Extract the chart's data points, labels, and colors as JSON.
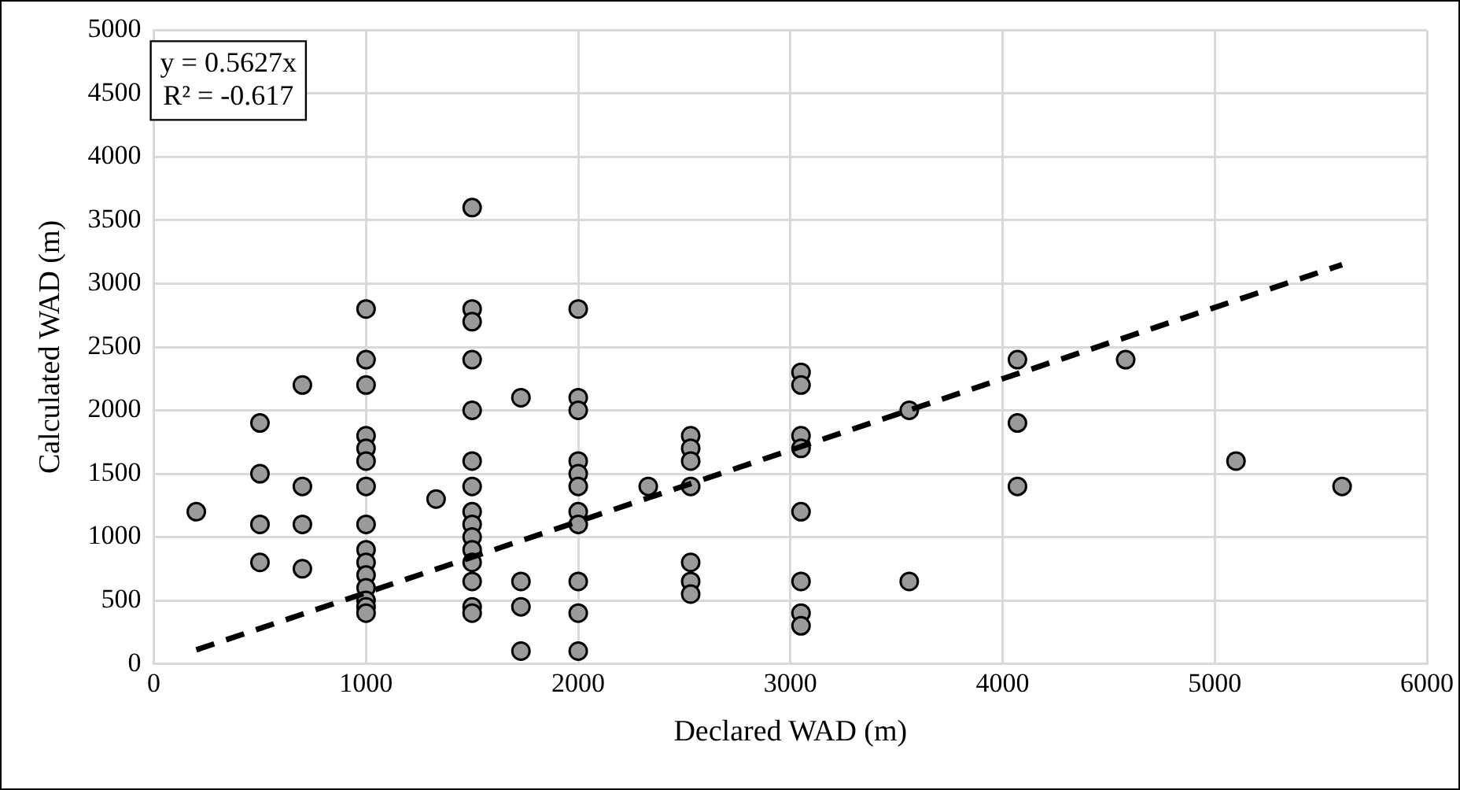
{
  "chart_data": {
    "type": "scatter",
    "xlabel": "Declared WAD (m)",
    "ylabel": "Calculated WAD (m)",
    "annotations": [
      "y = 0.5627x",
      "R² = -0.617"
    ],
    "xlim": [
      0,
      6000
    ],
    "xticks": [
      0,
      1000,
      2000,
      3000,
      4000,
      5000,
      6000
    ],
    "ylim": [
      0,
      5000
    ],
    "yticks": [
      0,
      500,
      1000,
      1500,
      2000,
      2500,
      3000,
      3500,
      4000,
      4500,
      5000
    ],
    "grid": true,
    "marker": "circle",
    "series": [
      {
        "type": "scatter",
        "color": "#9a9a9a",
        "x": [
          200,
          500,
          500,
          500,
          500,
          700,
          700,
          700,
          700,
          1000,
          1000,
          1000,
          1000,
          1000,
          1000,
          1000,
          1000,
          1000,
          1000,
          1000,
          1000,
          1000,
          1000,
          1000,
          1330,
          1500,
          1500,
          1500,
          1500,
          1500,
          1500,
          1500,
          1500,
          1500,
          1500,
          1500,
          1500,
          1500,
          1500,
          1500,
          1730,
          1730,
          1730,
          1730,
          2000,
          2000,
          2000,
          2000,
          2000,
          2000,
          2000,
          2000,
          2000,
          2000,
          2000,
          2330,
          2530,
          2530,
          2530,
          2530,
          2530,
          2530,
          2530,
          3050,
          3050,
          3050,
          3050,
          3050,
          3050,
          3050,
          3050,
          3560,
          3560,
          4070,
          4070,
          4070,
          4580,
          5100,
          5600
        ],
        "values": [
          1200,
          1900,
          1500,
          1100,
          800,
          2200,
          1400,
          1100,
          750,
          2800,
          2400,
          2200,
          1800,
          1700,
          1600,
          1400,
          1100,
          900,
          800,
          700,
          600,
          500,
          450,
          400,
          1300,
          3600,
          2800,
          2700,
          2400,
          2000,
          1600,
          1400,
          1200,
          1100,
          1000,
          900,
          800,
          650,
          450,
          400,
          2100,
          650,
          450,
          100,
          2800,
          2100,
          2000,
          1600,
          1500,
          1400,
          1200,
          1100,
          650,
          400,
          100,
          1400,
          1800,
          1700,
          1600,
          1400,
          800,
          650,
          550,
          2300,
          2200,
          1800,
          1700,
          1200,
          650,
          400,
          300,
          2000,
          650,
          2400,
          1900,
          1400,
          2400,
          1600,
          1400
        ]
      },
      {
        "type": "line",
        "color": "#000000",
        "marker": "none",
        "line_style": "dashed",
        "x": [
          200,
          5600
        ],
        "values": [
          110,
          3150
        ]
      }
    ]
  }
}
